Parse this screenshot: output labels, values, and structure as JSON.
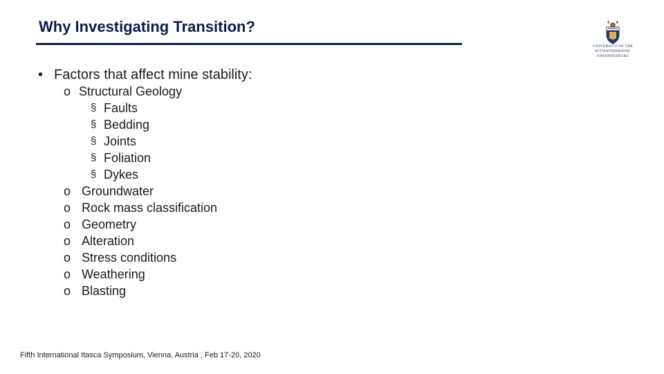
{
  "title": "Why Investigating Transition?",
  "logo": {
    "line1": "UNIVERSITY OF THE",
    "line2": "WITWATERSRAND,",
    "line3": "JOHANNESBURG"
  },
  "main_point": {
    "bullet": "•",
    "text": "Factors that affect mine stability:"
  },
  "structural": {
    "bullet": "o",
    "text": "Structural Geology",
    "sub_bullet": "§",
    "items": [
      "Faults",
      "Bedding",
      "Joints",
      "Foliation",
      "Dykes"
    ]
  },
  "factors": {
    "bullet": "o",
    "items": [
      "Groundwater",
      "Rock mass classification",
      "Geometry",
      "Alteration",
      "Stress conditions",
      "Weathering",
      "Blasting"
    ]
  },
  "footer": "Fifth International Itasca Symposium, Vienna, Austria , Feb 17-20, 2020"
}
